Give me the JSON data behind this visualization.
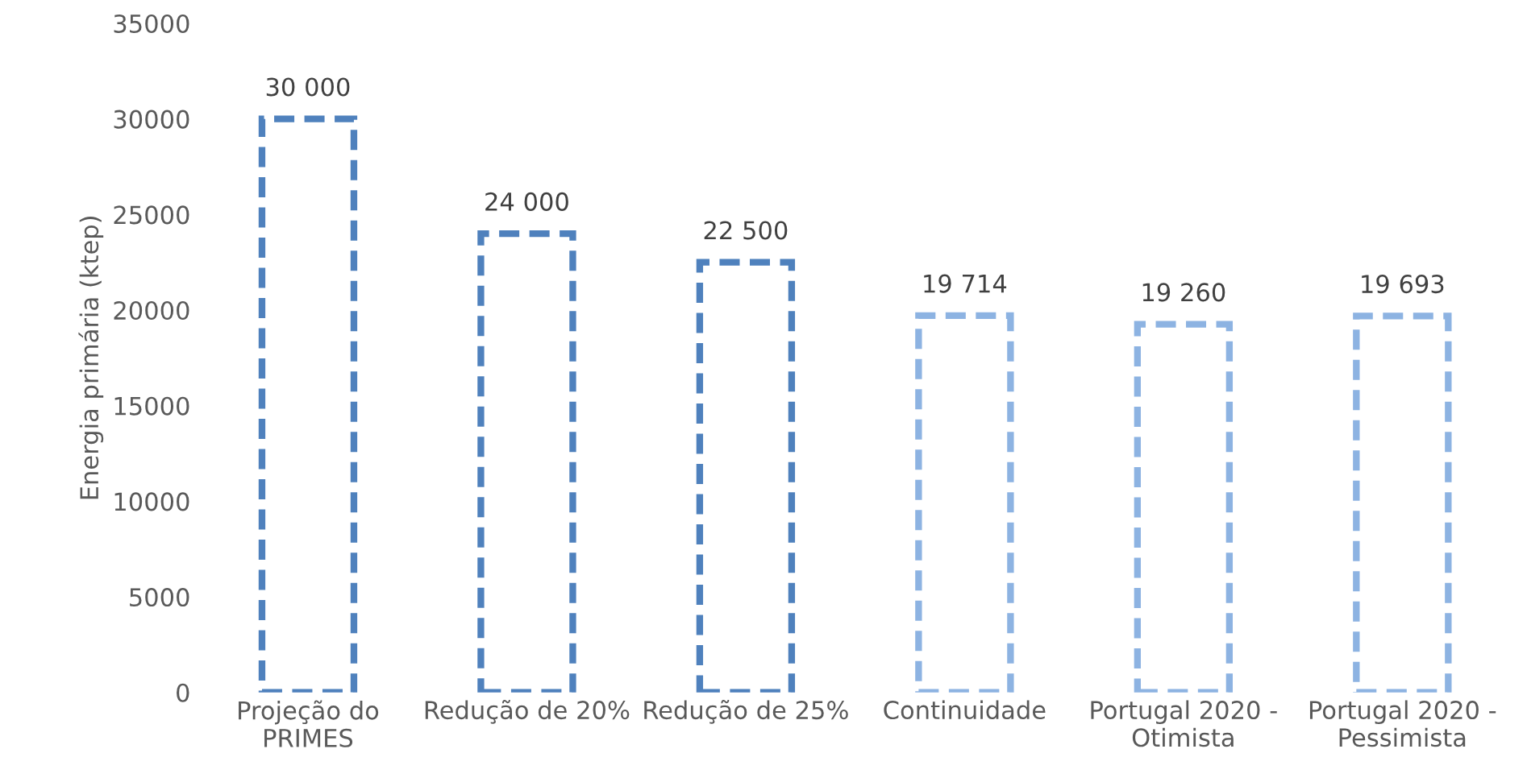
{
  "chart_data": {
    "type": "bar",
    "ylabel": "Energia primária (ktep)",
    "categories": [
      "Projeção do\nPRIMES",
      "Redução de 20%",
      "Redução de 25%",
      "Continuidade",
      "Portugal 2020 -\nOtimista",
      "Portugal 2020 -\nPessimista"
    ],
    "values": [
      30000,
      24000,
      22500,
      19714,
      19260,
      19693
    ],
    "colors": [
      "#4f81bd",
      "#4f81bd",
      "#4f81bd",
      "#8db3e2",
      "#8db3e2",
      "#8db3e2"
    ],
    "value_labels": [
      "30 000",
      "24 000",
      "22 500",
      "19 714",
      "19 260",
      "19 693"
    ],
    "line_style": "dashed",
    "ylim": [
      0,
      35000
    ],
    "yticks": [
      0,
      5000,
      10000,
      15000,
      20000,
      25000,
      30000,
      35000
    ],
    "grid": false,
    "legend": false
  }
}
